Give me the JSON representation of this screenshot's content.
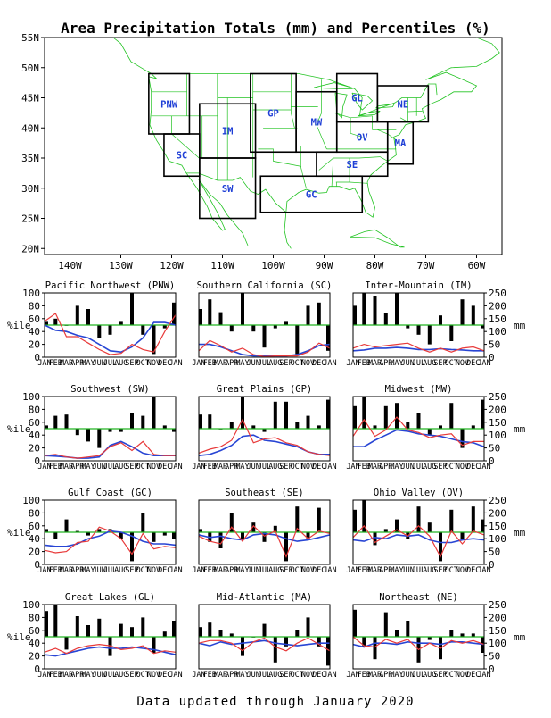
{
  "title": "Area Precipitation Totals (mm) and Percentiles (%)",
  "footer": "Data updated through January 2020",
  "colors": {
    "map_lines": "#22c322",
    "box": "#000000",
    "region_label": "#1f3fd6",
    "percentile_bar": "#000000",
    "median_line": "#22b422",
    "observed_line": "#e83a3a",
    "normal_line": "#2845d4"
  },
  "map": {
    "lat_labels": [
      "55N",
      "50N",
      "45N",
      "40N",
      "35N",
      "30N",
      "25N",
      "20N"
    ],
    "lon_labels": [
      "140W",
      "130W",
      "120W",
      "110W",
      "100W",
      "90W",
      "80W",
      "70W",
      "60W"
    ],
    "regions": [
      {
        "code": "PNW",
        "lon": [
          -124.5,
          -116.5
        ],
        "lat": [
          39,
          49
        ]
      },
      {
        "code": "SC",
        "lon": [
          -121.5,
          -114.5
        ],
        "lat": [
          32,
          39
        ]
      },
      {
        "code": "IM",
        "lon": [
          -114.5,
          -103.5
        ],
        "lat": [
          35,
          44
        ]
      },
      {
        "code": "SW",
        "lon": [
          -114.5,
          -103.5
        ],
        "lat": [
          25,
          35
        ]
      },
      {
        "code": "GP",
        "lon": [
          -104.5,
          -95.5
        ],
        "lat": [
          36,
          49
        ]
      },
      {
        "code": "MW",
        "lon": [
          -95.5,
          -87.5
        ],
        "lat": [
          36,
          46
        ]
      },
      {
        "code": "GL",
        "lon": [
          -87.5,
          -79.5
        ],
        "lat": [
          41,
          49
        ]
      },
      {
        "code": "OV",
        "lon": [
          -87.5,
          -77.5
        ],
        "lat": [
          36,
          41
        ]
      },
      {
        "code": "SE",
        "lon": [
          -91.5,
          -77.5
        ],
        "lat": [
          32,
          36
        ]
      },
      {
        "code": "GC",
        "lon": [
          -102.5,
          -82.5
        ],
        "lat": [
          26,
          32
        ]
      },
      {
        "code": "MA",
        "lon": [
          -77.5,
          -72.5
        ],
        "lat": [
          34,
          41
        ]
      },
      {
        "code": "NE",
        "lon": [
          -79.5,
          -69.5
        ],
        "lat": [
          41,
          47
        ]
      }
    ]
  },
  "chart_data": [
    {
      "type": "bar",
      "region": "PNW",
      "title": "Pacific Northwest (PNW)",
      "categories": [
        "JAN",
        "FEB",
        "MAR",
        "APR",
        "MAY",
        "JUN",
        "JUL",
        "AUG",
        "SEP",
        "OCT",
        "NOV",
        "DEC",
        "JAN"
      ],
      "percentile": [
        55,
        60,
        50,
        80,
        75,
        30,
        35,
        55,
        100,
        35,
        5,
        45,
        85
      ],
      "observed_mm": [
        140,
        170,
        80,
        80,
        55,
        30,
        10,
        15,
        50,
        30,
        20,
        100,
        165
      ],
      "normal_mm": [
        125,
        105,
        100,
        85,
        75,
        50,
        25,
        20,
        40,
        75,
        135,
        135,
        125
      ],
      "ylim_pct": [
        0,
        100
      ],
      "ylim_mm": [
        0,
        250
      ]
    },
    {
      "type": "bar",
      "region": "SC",
      "title": "Southern California (SC)",
      "categories": [
        "JAN",
        "FEB",
        "MAR",
        "APR",
        "MAY",
        "JUN",
        "JUL",
        "AUG",
        "SEP",
        "OCT",
        "NOV",
        "DEC",
        "JAN"
      ],
      "percentile": [
        75,
        90,
        70,
        40,
        100,
        40,
        15,
        45,
        55,
        5,
        80,
        85,
        10
      ],
      "observed_mm": [
        25,
        65,
        45,
        20,
        35,
        10,
        2,
        5,
        5,
        5,
        20,
        55,
        35
      ],
      "normal_mm": [
        50,
        50,
        40,
        25,
        10,
        5,
        5,
        5,
        5,
        10,
        25,
        45,
        50
      ],
      "ylim_pct": [
        0,
        100
      ],
      "ylim_mm": [
        0,
        250
      ]
    },
    {
      "type": "bar",
      "region": "IM",
      "title": "Inter-Mountain (IM)",
      "categories": [
        "JAN",
        "FEB",
        "MAR",
        "APR",
        "MAY",
        "JUN",
        "JUL",
        "AUG",
        "SEP",
        "OCT",
        "NOV",
        "DEC",
        "JAN"
      ],
      "percentile": [
        80,
        100,
        95,
        68,
        100,
        45,
        35,
        20,
        65,
        25,
        90,
        80,
        45
      ],
      "observed_mm": [
        35,
        50,
        40,
        45,
        50,
        55,
        35,
        20,
        35,
        20,
        35,
        40,
        25
      ],
      "normal_mm": [
        25,
        28,
        35,
        35,
        38,
        35,
        30,
        30,
        33,
        30,
        28,
        25,
        25
      ],
      "ylim_pct": [
        0,
        100
      ],
      "ylim_mm": [
        0,
        250
      ]
    },
    {
      "type": "bar",
      "region": "SW",
      "title": "Southwest (SW)",
      "categories": [
        "JAN",
        "FEB",
        "MAR",
        "APR",
        "MAY",
        "JUN",
        "JUL",
        "AUG",
        "SEP",
        "OCT",
        "NOV",
        "DEC",
        "JAN"
      ],
      "percentile": [
        55,
        70,
        72,
        40,
        30,
        20,
        45,
        45,
        75,
        70,
        100,
        55,
        45
      ],
      "observed_mm": [
        20,
        25,
        15,
        10,
        15,
        20,
        55,
        70,
        40,
        75,
        25,
        20,
        20
      ],
      "normal_mm": [
        20,
        18,
        15,
        10,
        10,
        15,
        60,
        75,
        55,
        30,
        20,
        20,
        20
      ],
      "ylim_pct": [
        0,
        100
      ],
      "ylim_mm": [
        0,
        250
      ]
    },
    {
      "type": "bar",
      "region": "GP",
      "title": "Great Plains (GP)",
      "categories": [
        "JAN",
        "FEB",
        "MAR",
        "APR",
        "MAY",
        "JUN",
        "JUL",
        "AUG",
        "SEP",
        "OCT",
        "NOV",
        "DEC",
        "JAN"
      ],
      "percentile": [
        72,
        72,
        50,
        60,
        100,
        55,
        45,
        92,
        92,
        60,
        70,
        55,
        95
      ],
      "observed_mm": [
        30,
        45,
        55,
        80,
        160,
        70,
        85,
        90,
        70,
        60,
        35,
        25,
        20
      ],
      "normal_mm": [
        20,
        25,
        40,
        60,
        95,
        100,
        80,
        75,
        65,
        55,
        35,
        25,
        25
      ],
      "ylim_pct": [
        0,
        100
      ],
      "ylim_mm": [
        0,
        250
      ]
    },
    {
      "type": "bar",
      "region": "MW",
      "title": "Midwest (MW)",
      "categories": [
        "JAN",
        "FEB",
        "MAR",
        "APR",
        "MAY",
        "JUN",
        "JUL",
        "AUG",
        "SEP",
        "OCT",
        "NOV",
        "DEC",
        "JAN"
      ],
      "percentile": [
        85,
        100,
        55,
        85,
        90,
        60,
        75,
        40,
        55,
        90,
        20,
        55,
        95
      ],
      "observed_mm": [
        95,
        160,
        95,
        120,
        170,
        120,
        110,
        90,
        100,
        105,
        60,
        75,
        75
      ],
      "normal_mm": [
        55,
        55,
        80,
        100,
        120,
        115,
        105,
        100,
        95,
        85,
        75,
        70,
        55
      ],
      "ylim_pct": [
        0,
        100
      ],
      "ylim_mm": [
        0,
        250
      ]
    },
    {
      "type": "bar",
      "region": "GC",
      "title": "Gulf Coast (GC)",
      "categories": [
        "JAN",
        "FEB",
        "MAR",
        "APR",
        "MAY",
        "JUN",
        "JUL",
        "AUG",
        "SEP",
        "OCT",
        "NOV",
        "DEC",
        "JAN"
      ],
      "percentile": [
        55,
        40,
        70,
        52,
        45,
        55,
        55,
        40,
        5,
        80,
        35,
        45,
        40
      ],
      "observed_mm": [
        55,
        45,
        50,
        85,
        90,
        145,
        130,
        100,
        40,
        120,
        60,
        70,
        65
      ],
      "normal_mm": [
        75,
        70,
        70,
        80,
        100,
        110,
        130,
        125,
        110,
        90,
        80,
        80,
        75
      ],
      "ylim_pct": [
        0,
        100
      ],
      "ylim_mm": [
        0,
        250
      ]
    },
    {
      "type": "bar",
      "region": "SE",
      "title": "Southeast (SE)",
      "categories": [
        "JAN",
        "FEB",
        "MAR",
        "APR",
        "MAY",
        "JUN",
        "JUL",
        "AUG",
        "SEP",
        "OCT",
        "NOV",
        "DEC",
        "JAN"
      ],
      "percentile": [
        55,
        35,
        25,
        80,
        40,
        65,
        35,
        60,
        5,
        90,
        40,
        88,
        50
      ],
      "observed_mm": [
        110,
        90,
        80,
        145,
        90,
        150,
        110,
        130,
        30,
        140,
        100,
        130,
        120
      ],
      "normal_mm": [
        115,
        105,
        110,
        100,
        95,
        115,
        120,
        115,
        100,
        90,
        95,
        105,
        115
      ],
      "ylim_pct": [
        0,
        100
      ],
      "ylim_mm": [
        0,
        250
      ]
    },
    {
      "type": "bar",
      "region": "OV",
      "title": "Ohio Valley (OV)",
      "categories": [
        "JAN",
        "FEB",
        "MAR",
        "APR",
        "MAY",
        "JUN",
        "JUL",
        "AUG",
        "SEP",
        "OCT",
        "NOV",
        "DEC",
        "JAN"
      ],
      "percentile": [
        85,
        100,
        30,
        55,
        70,
        40,
        90,
        65,
        5,
        85,
        40,
        90,
        70
      ],
      "observed_mm": [
        105,
        150,
        85,
        110,
        135,
        110,
        150,
        110,
        30,
        130,
        80,
        130,
        115
      ],
      "normal_mm": [
        95,
        90,
        105,
        100,
        115,
        110,
        115,
        95,
        85,
        85,
        95,
        100,
        95
      ],
      "ylim_pct": [
        0,
        100
      ],
      "ylim_mm": [
        0,
        250
      ]
    },
    {
      "type": "bar",
      "region": "GL",
      "title": "Great Lakes (GL)",
      "categories": [
        "JAN",
        "FEB",
        "MAR",
        "APR",
        "MAY",
        "JUN",
        "JUL",
        "AUG",
        "SEP",
        "OCT",
        "NOV",
        "DEC",
        "JAN"
      ],
      "percentile": [
        90,
        100,
        30,
        82,
        68,
        78,
        20,
        70,
        65,
        80,
        25,
        58,
        75
      ],
      "observed_mm": [
        65,
        80,
        60,
        80,
        90,
        95,
        90,
        75,
        80,
        90,
        60,
        70,
        65
      ],
      "normal_mm": [
        55,
        50,
        60,
        70,
        80,
        85,
        80,
        80,
        85,
        80,
        75,
        65,
        55
      ],
      "ylim_pct": [
        0,
        100
      ],
      "ylim_mm": [
        0,
        250
      ]
    },
    {
      "type": "bar",
      "region": "MA",
      "title": "Mid-Atlantic (MA)",
      "categories": [
        "JAN",
        "FEB",
        "MAR",
        "APR",
        "MAY",
        "JUN",
        "JUL",
        "AUG",
        "SEP",
        "OCT",
        "NOV",
        "DEC",
        "JAN"
      ],
      "percentile": [
        65,
        72,
        60,
        55,
        20,
        50,
        70,
        10,
        35,
        60,
        80,
        35,
        5
      ],
      "observed_mm": [
        100,
        110,
        110,
        100,
        70,
        105,
        120,
        85,
        70,
        100,
        120,
        95,
        70
      ],
      "normal_mm": [
        100,
        90,
        105,
        95,
        100,
        105,
        110,
        100,
        95,
        90,
        95,
        100,
        100
      ],
      "ylim_pct": [
        0,
        100
      ],
      "ylim_mm": [
        0,
        250
      ]
    },
    {
      "type": "bar",
      "region": "NE",
      "title": "Northeast (NE)",
      "categories": [
        "JAN",
        "FEB",
        "MAR",
        "APR",
        "MAY",
        "JUN",
        "JUL",
        "AUG",
        "SEP",
        "OCT",
        "NOV",
        "DEC",
        "JAN"
      ],
      "percentile": [
        92,
        35,
        15,
        88,
        60,
        75,
        10,
        45,
        15,
        60,
        55,
        55,
        25
      ],
      "observed_mm": [
        125,
        90,
        85,
        115,
        100,
        115,
        75,
        100,
        80,
        110,
        100,
        110,
        95
      ],
      "normal_mm": [
        95,
        85,
        100,
        100,
        95,
        105,
        100,
        100,
        95,
        105,
        105,
        100,
        95
      ],
      "ylim_pct": [
        0,
        100
      ],
      "ylim_mm": [
        0,
        250
      ]
    }
  ],
  "axis": {
    "pct_ticks": [
      "0",
      "20",
      "40",
      "60",
      "80",
      "100"
    ],
    "mm_ticks": [
      "0",
      "50",
      "100",
      "150",
      "200",
      "250"
    ],
    "pct_label": "%ile",
    "mm_label": "mm"
  }
}
